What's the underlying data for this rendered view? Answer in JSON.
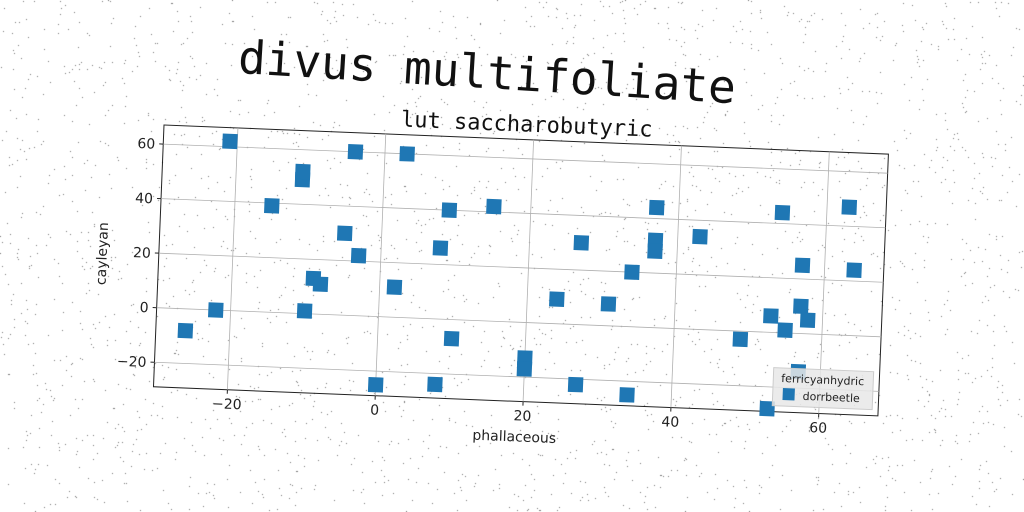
{
  "title": "divus multifoliate",
  "colors": {
    "series": "#1f77b4",
    "grid": "#b0b0b0",
    "text": "#222222"
  },
  "chart_data": {
    "type": "scatter",
    "title": "lut saccharobutyric",
    "xlabel": "phallaceous",
    "ylabel": "cayleyan",
    "xlim": [
      -30,
      68
    ],
    "ylim": [
      -29,
      67
    ],
    "xticks": [
      -20,
      0,
      20,
      40,
      60
    ],
    "yticks": [
      -20,
      0,
      20,
      40,
      60
    ],
    "grid": true,
    "legend": {
      "title": "ferricyanhydric",
      "placement": "bottom-right",
      "marker": "square"
    },
    "series": [
      {
        "name": "dorrbeetle",
        "marker": "square",
        "points": [
          [
            -26,
            -8
          ],
          [
            -22,
            0
          ],
          [
            -21,
            62
          ],
          [
            -15,
            39
          ],
          [
            -11,
            49
          ],
          [
            -11,
            52
          ],
          [
            -9,
            13
          ],
          [
            -8,
            11
          ],
          [
            -10,
            1
          ],
          [
            -5,
            30
          ],
          [
            -3,
            22
          ],
          [
            -4,
            60
          ],
          [
            2,
            11
          ],
          [
            3,
            60
          ],
          [
            0,
            -25
          ],
          [
            8,
            26
          ],
          [
            9,
            40
          ],
          [
            8,
            -24
          ],
          [
            10,
            -7
          ],
          [
            15,
            42
          ],
          [
            20,
            -13
          ],
          [
            20,
            -17
          ],
          [
            24,
            9
          ],
          [
            27,
            30
          ],
          [
            27,
            -22
          ],
          [
            31,
            8
          ],
          [
            34,
            20
          ],
          [
            34,
            -25
          ],
          [
            37,
            44
          ],
          [
            37,
            32
          ],
          [
            37,
            28
          ],
          [
            43,
            34
          ],
          [
            49,
            -3
          ],
          [
            53,
            6
          ],
          [
            54,
            44
          ],
          [
            55,
            1
          ],
          [
            57,
            10
          ],
          [
            57,
            25
          ],
          [
            58,
            5
          ],
          [
            57,
            -14
          ],
          [
            63,
            47
          ],
          [
            64,
            24
          ],
          [
            53,
            -28
          ]
        ]
      }
    ]
  }
}
